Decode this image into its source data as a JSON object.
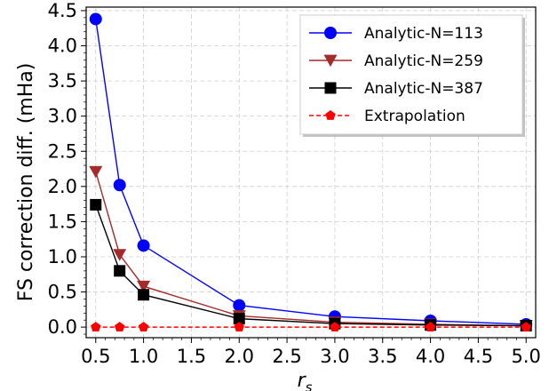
{
  "chart_data": {
    "type": "line",
    "title": "",
    "xlabel": "r",
    "xlabel_sub": "s",
    "ylabel": "FS correction diff. (mHa)",
    "xlim": [
      0.4,
      5.1
    ],
    "ylim": [
      -0.15,
      4.55
    ],
    "x_ticks": [
      "0.5",
      "1.0",
      "1.5",
      "2.0",
      "2.5",
      "3.0",
      "3.5",
      "4.0",
      "4.5",
      "5.0"
    ],
    "y_ticks": [
      "0.0",
      "0.5",
      "1.0",
      "1.5",
      "2.0",
      "2.5",
      "3.0",
      "3.5",
      "4.0",
      "4.5"
    ],
    "grid": true,
    "legend_position": "top-right",
    "series": [
      {
        "name": "Analytic-N=113",
        "color": "#0000ff",
        "marker": "circle",
        "line": "solid",
        "x": [
          0.5,
          0.75,
          1.0,
          2.0,
          3.0,
          4.0,
          5.0
        ],
        "y": [
          4.38,
          2.02,
          1.16,
          0.31,
          0.15,
          0.09,
          0.04
        ]
      },
      {
        "name": "Analytic-N=259",
        "color": "#a52a2a",
        "marker": "triangle-down",
        "line": "solid",
        "x": [
          0.5,
          0.75,
          1.0,
          2.0,
          3.0,
          4.0,
          5.0
        ],
        "y": [
          2.21,
          1.03,
          0.58,
          0.16,
          0.07,
          0.04,
          0.02
        ]
      },
      {
        "name": "Analytic-N=387",
        "color": "#000000",
        "marker": "square",
        "line": "solid",
        "x": [
          0.5,
          0.75,
          1.0,
          2.0,
          3.0,
          4.0,
          5.0
        ],
        "y": [
          1.74,
          0.8,
          0.46,
          0.12,
          0.05,
          0.03,
          0.02
        ]
      },
      {
        "name": "Extrapolation",
        "color": "#ff0000",
        "marker": "pentagon",
        "line": "dashed",
        "x": [
          0.5,
          0.75,
          1.0,
          2.0,
          3.0,
          4.0,
          5.0
        ],
        "y": [
          0.0,
          0.0,
          0.0,
          0.0,
          0.0,
          0.0,
          0.0
        ]
      }
    ]
  }
}
